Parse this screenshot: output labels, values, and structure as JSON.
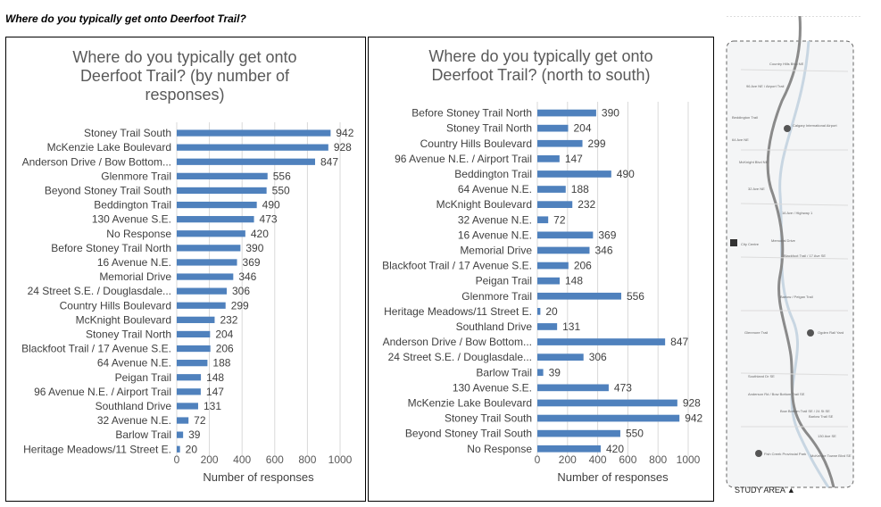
{
  "page": {
    "heading": "Where do you typically get onto Deerfoot Trail?"
  },
  "map": {
    "study_area_label": "STUDY AREA",
    "labels": [
      "Country Hills Blvd NE",
      "96 Ave NE / Airport Trail",
      "Beddington Trail",
      "64 Ave NE",
      "McKnight Blvd NE",
      "32 Ave NE",
      "16 Ave / Highway 1",
      "Memorial Drive",
      "Blackfoot Trail / 17 Ave SE",
      "Barlow / Peigan Trail",
      "Glenmore Trail",
      "Southland Dr SE",
      "Anderson Rd / Bow Bottom Trail SE",
      "Bow Bottom Trail SE / 24 St SE",
      "Barlow Trail SE",
      "130 Ave SE",
      "McKenzie Towne Blvd SE",
      "Calgary International Airport",
      "City Centre",
      "Ogden Rail Yard",
      "Fish Creek Provincial Park"
    ]
  },
  "chart_data": [
    {
      "type": "bar",
      "orientation": "horizontal",
      "title": "Where do you typically get onto Deerfoot Trail? (by number of responses)",
      "title_lines": [
        "Where do you typically get onto",
        "Deerfoot Trail? (by number of",
        "responses)"
      ],
      "xlabel": "Number of responses",
      "xlim": [
        0,
        1000
      ],
      "xticks": [
        "0",
        "200",
        "400",
        "600",
        "800",
        "1000"
      ],
      "grid": true,
      "bar_color": "#4f81bd",
      "categories": [
        "Stoney Trail South",
        "McKenzie Lake Boulevard",
        "Anderson Drive / Bow Bottom...",
        "Glenmore Trail",
        "Beyond Stoney Trail South",
        "Beddington Trail",
        "130 Avenue S.E.",
        "No Response",
        "Before Stoney Trail North",
        "16 Avenue N.E.",
        "Memorial Drive",
        "24 Street S.E. / Douglasdale...",
        "Country Hills Boulevard",
        "McKnight Boulevard",
        "Stoney Trail North",
        "Blackfoot Trail / 17 Avenue S.E.",
        "64 Avenue N.E.",
        "Peigan Trail",
        "96 Avenue N.E. / Airport Trail",
        "Southland Drive",
        "32 Avenue N.E.",
        "Barlow Trail",
        "Heritage Meadows/11 Street E."
      ],
      "values": [
        942,
        928,
        847,
        556,
        550,
        490,
        473,
        420,
        390,
        369,
        346,
        306,
        299,
        232,
        204,
        206,
        188,
        148,
        147,
        131,
        72,
        39,
        20
      ]
    },
    {
      "type": "bar",
      "orientation": "horizontal",
      "title": "Where do you typically get onto Deerfoot Trail? (north to south)",
      "title_lines": [
        "Where do you typically get onto",
        "Deerfoot Trail? (north to south)"
      ],
      "xlabel": "Number of responses",
      "xlim": [
        0,
        1000
      ],
      "xticks": [
        "0",
        "200",
        "400",
        "600",
        "800",
        "1000"
      ],
      "grid": true,
      "bar_color": "#4f81bd",
      "categories": [
        "Before Stoney Trail North",
        "Stoney Trail North",
        "Country Hills Boulevard",
        "96 Avenue N.E. / Airport Trail",
        "Beddington Trail",
        "64 Avenue N.E.",
        "McKnight Boulevard",
        "32 Avenue N.E.",
        "16 Avenue N.E.",
        "Memorial Drive",
        "Blackfoot Trail / 17 Avenue S.E.",
        "Peigan Trail",
        "Glenmore Trail",
        "Heritage Meadows/11 Street E.",
        "Southland Drive",
        "Anderson Drive / Bow Bottom...",
        "24 Street S.E. / Douglasdale...",
        "Barlow Trail",
        "130 Avenue S.E.",
        "McKenzie Lake Boulevard",
        "Stoney Trail South",
        "Beyond Stoney Trail South",
        "No Response"
      ],
      "values": [
        390,
        204,
        299,
        147,
        490,
        188,
        232,
        72,
        369,
        346,
        206,
        148,
        556,
        20,
        131,
        847,
        306,
        39,
        473,
        928,
        942,
        550,
        420
      ]
    }
  ]
}
